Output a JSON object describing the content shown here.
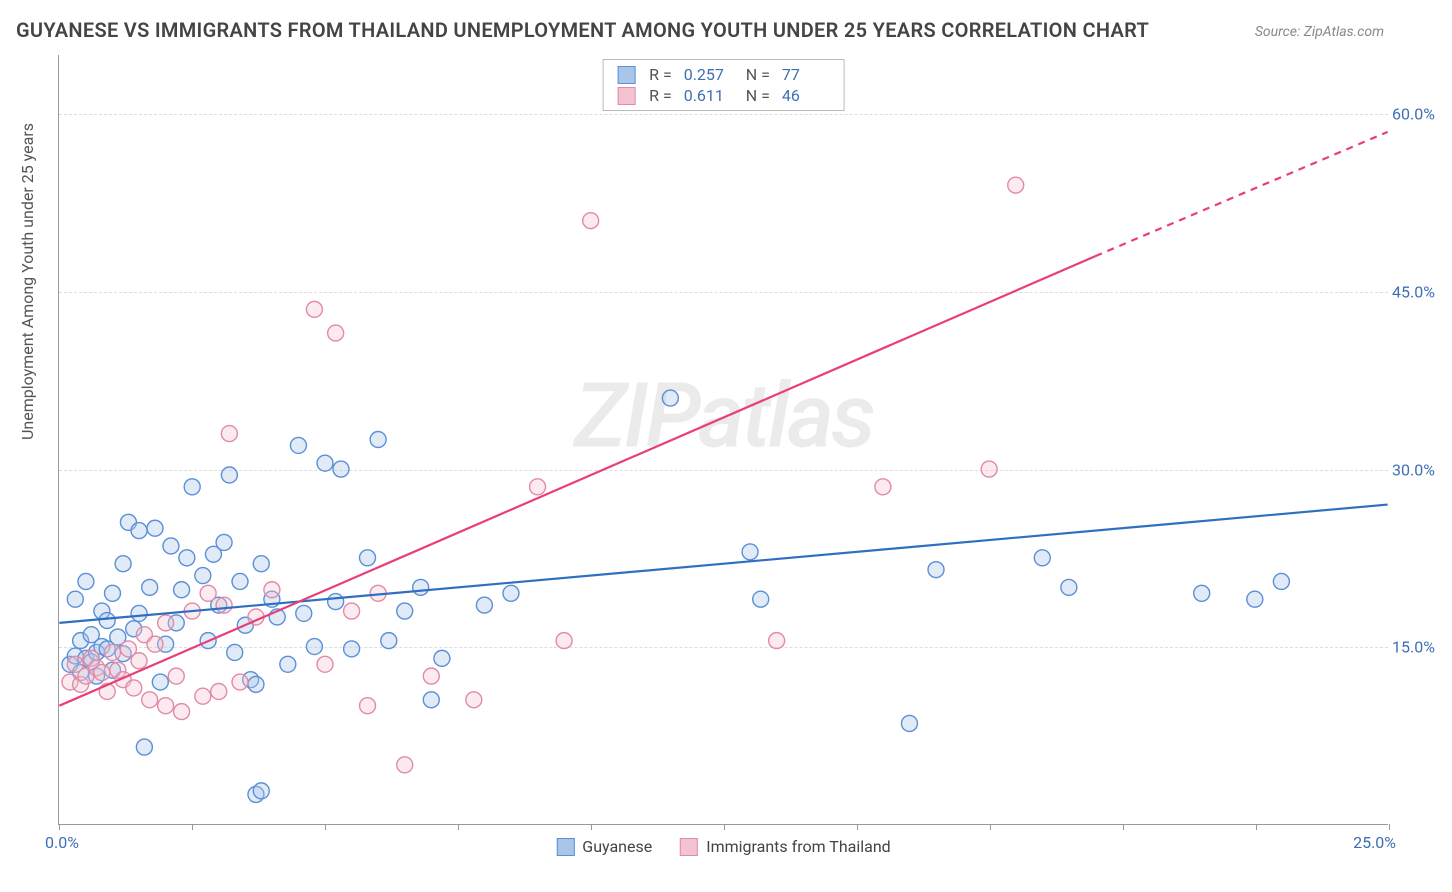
{
  "title": "GUYANESE VS IMMIGRANTS FROM THAILAND UNEMPLOYMENT AMONG YOUTH UNDER 25 YEARS CORRELATION CHART",
  "source": "Source: ZipAtlas.com",
  "y_axis_label": "Unemployment Among Youth under 25 years",
  "watermark": "ZIPatlas",
  "chart": {
    "type": "scatter",
    "xlim": [
      0,
      25
    ],
    "ylim": [
      0,
      65
    ],
    "x_origin_label": "0.0%",
    "x_end_label": "25.0%",
    "x_tick_positions": [
      0,
      2.5,
      5,
      7.5,
      10,
      12.5,
      15,
      17.5,
      20,
      22.5,
      25
    ],
    "y_ticks": [
      {
        "v": 15,
        "label": "15.0%"
      },
      {
        "v": 30,
        "label": "30.0%"
      },
      {
        "v": 45,
        "label": "45.0%"
      },
      {
        "v": 60,
        "label": "60.0%"
      }
    ],
    "background_color": "#ffffff",
    "grid_color": "#dddddd",
    "marker_radius": 8,
    "marker_stroke_width": 1.4,
    "marker_fill_opacity": 0.35,
    "trend_line_width": 2.2,
    "series": [
      {
        "name": "Guyanese",
        "color_stroke": "#5b8fd6",
        "color_fill": "#a9c6ea",
        "line_color": "#2e6fc2",
        "R": "0.257",
        "N": "77",
        "trend": {
          "x0": 0,
          "y0": 17.0,
          "x1": 25,
          "y1": 27.0
        },
        "points": [
          [
            0.2,
            13.5
          ],
          [
            0.3,
            14.2
          ],
          [
            0.3,
            19.0
          ],
          [
            0.4,
            12.8
          ],
          [
            0.4,
            15.5
          ],
          [
            0.5,
            14.0
          ],
          [
            0.5,
            20.5
          ],
          [
            0.6,
            13.7
          ],
          [
            0.6,
            16.0
          ],
          [
            0.7,
            14.5
          ],
          [
            0.7,
            12.5
          ],
          [
            0.8,
            15.0
          ],
          [
            0.8,
            18.0
          ],
          [
            0.9,
            14.8
          ],
          [
            0.9,
            17.2
          ],
          [
            1.0,
            13.0
          ],
          [
            1.0,
            19.5
          ],
          [
            1.1,
            15.8
          ],
          [
            1.2,
            14.4
          ],
          [
            1.2,
            22.0
          ],
          [
            1.3,
            25.5
          ],
          [
            1.4,
            16.5
          ],
          [
            1.5,
            24.8
          ],
          [
            1.5,
            17.8
          ],
          [
            1.6,
            6.5
          ],
          [
            1.7,
            20.0
          ],
          [
            1.8,
            25.0
          ],
          [
            1.9,
            12.0
          ],
          [
            2.0,
            15.2
          ],
          [
            2.1,
            23.5
          ],
          [
            2.2,
            17.0
          ],
          [
            2.3,
            19.8
          ],
          [
            2.4,
            22.5
          ],
          [
            2.5,
            28.5
          ],
          [
            2.7,
            21.0
          ],
          [
            2.8,
            15.5
          ],
          [
            2.9,
            22.8
          ],
          [
            3.0,
            18.5
          ],
          [
            3.1,
            23.8
          ],
          [
            3.2,
            29.5
          ],
          [
            3.3,
            14.5
          ],
          [
            3.4,
            20.5
          ],
          [
            3.5,
            16.8
          ],
          [
            3.6,
            12.2
          ],
          [
            3.7,
            11.8
          ],
          [
            3.7,
            2.5
          ],
          [
            3.8,
            2.8
          ],
          [
            3.8,
            22.0
          ],
          [
            4.0,
            19.0
          ],
          [
            4.1,
            17.5
          ],
          [
            4.3,
            13.5
          ],
          [
            4.5,
            32.0
          ],
          [
            4.6,
            17.8
          ],
          [
            4.8,
            15.0
          ],
          [
            5.0,
            30.5
          ],
          [
            5.2,
            18.8
          ],
          [
            5.3,
            30.0
          ],
          [
            5.5,
            14.8
          ],
          [
            5.8,
            22.5
          ],
          [
            6.0,
            32.5
          ],
          [
            6.2,
            15.5
          ],
          [
            6.5,
            18.0
          ],
          [
            6.8,
            20.0
          ],
          [
            7.0,
            10.5
          ],
          [
            7.2,
            14.0
          ],
          [
            8.0,
            18.5
          ],
          [
            8.5,
            19.5
          ],
          [
            11.5,
            36.0
          ],
          [
            13.0,
            23.0
          ],
          [
            13.2,
            19.0
          ],
          [
            16.0,
            8.5
          ],
          [
            16.5,
            21.5
          ],
          [
            18.5,
            22.5
          ],
          [
            19.0,
            20.0
          ],
          [
            21.5,
            19.5
          ],
          [
            22.5,
            19.0
          ],
          [
            23.0,
            20.5
          ]
        ]
      },
      {
        "name": "Immigrants from Thailand",
        "color_stroke": "#e28ba5",
        "color_fill": "#f3c3d2",
        "line_color": "#e83e7a",
        "R": "0.611",
        "N": "46",
        "trend": {
          "x0": 0,
          "y0": 10.0,
          "x1": 19.5,
          "y1": 48.0
        },
        "trend_dashed": {
          "x0": 19.5,
          "y0": 48.0,
          "x1": 25,
          "y1": 58.5
        },
        "points": [
          [
            0.2,
            12.0
          ],
          [
            0.3,
            13.5
          ],
          [
            0.4,
            11.8
          ],
          [
            0.5,
            12.5
          ],
          [
            0.6,
            14.0
          ],
          [
            0.7,
            13.2
          ],
          [
            0.8,
            12.8
          ],
          [
            0.9,
            11.2
          ],
          [
            1.0,
            14.5
          ],
          [
            1.1,
            13.0
          ],
          [
            1.2,
            12.2
          ],
          [
            1.3,
            14.8
          ],
          [
            1.4,
            11.5
          ],
          [
            1.5,
            13.8
          ],
          [
            1.6,
            16.0
          ],
          [
            1.7,
            10.5
          ],
          [
            1.8,
            15.2
          ],
          [
            2.0,
            17.0
          ],
          [
            2.0,
            10.0
          ],
          [
            2.2,
            12.5
          ],
          [
            2.3,
            9.5
          ],
          [
            2.5,
            18.0
          ],
          [
            2.7,
            10.8
          ],
          [
            2.8,
            19.5
          ],
          [
            3.0,
            11.2
          ],
          [
            3.1,
            18.5
          ],
          [
            3.2,
            33.0
          ],
          [
            3.4,
            12.0
          ],
          [
            3.7,
            17.5
          ],
          [
            4.0,
            19.8
          ],
          [
            4.8,
            43.5
          ],
          [
            5.0,
            13.5
          ],
          [
            5.2,
            41.5
          ],
          [
            5.5,
            18.0
          ],
          [
            5.8,
            10.0
          ],
          [
            6.0,
            19.5
          ],
          [
            6.5,
            5.0
          ],
          [
            7.0,
            12.5
          ],
          [
            7.8,
            10.5
          ],
          [
            9.0,
            28.5
          ],
          [
            9.5,
            15.5
          ],
          [
            10.0,
            51.0
          ],
          [
            13.5,
            15.5
          ],
          [
            17.5,
            30.0
          ],
          [
            18.0,
            54.0
          ],
          [
            15.5,
            28.5
          ]
        ]
      }
    ]
  },
  "legend_bottom": [
    {
      "label": "Guyanese",
      "fill": "#a9c6ea",
      "stroke": "#5b8fd6"
    },
    {
      "label": "Immigrants from Thailand",
      "fill": "#f3c3d2",
      "stroke": "#e28ba5"
    }
  ]
}
